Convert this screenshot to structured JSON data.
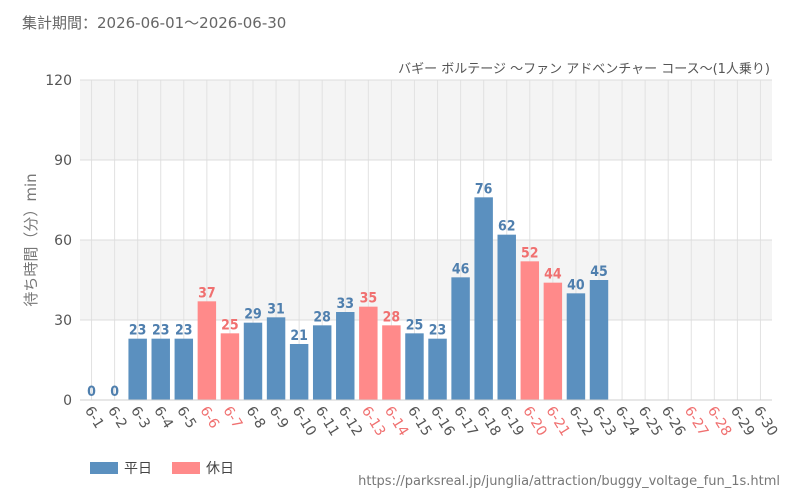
{
  "header": {
    "period_label": "集計期間：2026-06-01～2026-06-30",
    "source_url": "https://parksreal.jp/junglia/attraction/buggy_voltage_fun_1s.html"
  },
  "colors": {
    "weekday": "#5b90bf",
    "holiday": "#ff8a8a",
    "weekday_text": "#4f7fae",
    "holiday_text": "#f07070"
  },
  "chart_data": {
    "type": "bar",
    "title": "バギー ボルテージ ～ファン アドベンチャー コース～(1人乗り)",
    "ylabel": "待ち時間（分）min",
    "xlabel": "",
    "ylim": [
      0,
      120
    ],
    "yticks": [
      0,
      30,
      60,
      90,
      120
    ],
    "grid": true,
    "legend_position": "bottom-left",
    "categories": [
      "6-1",
      "6-2",
      "6-3",
      "6-4",
      "6-5",
      "6-6",
      "6-7",
      "6-8",
      "6-9",
      "6-10",
      "6-11",
      "6-12",
      "6-13",
      "6-14",
      "6-15",
      "6-16",
      "6-17",
      "6-18",
      "6-19",
      "6-20",
      "6-21",
      "6-22",
      "6-23",
      "6-24",
      "6-25",
      "6-26",
      "6-27",
      "6-28",
      "6-29",
      "6-30"
    ],
    "values": [
      0,
      0,
      23,
      23,
      23,
      37,
      25,
      29,
      31,
      21,
      28,
      33,
      35,
      28,
      25,
      23,
      46,
      76,
      62,
      52,
      44,
      40,
      45,
      null,
      null,
      null,
      null,
      null,
      null,
      null
    ],
    "day_type": [
      "平日",
      "平日",
      "平日",
      "平日",
      "平日",
      "休日",
      "休日",
      "平日",
      "平日",
      "平日",
      "平日",
      "平日",
      "休日",
      "休日",
      "平日",
      "平日",
      "平日",
      "平日",
      "平日",
      "休日",
      "休日",
      "平日",
      "平日",
      "平日",
      "平日",
      "平日",
      "休日",
      "休日",
      "平日",
      "平日"
    ],
    "series": [
      {
        "name": "平日",
        "color": "#5b90bf"
      },
      {
        "name": "休日",
        "color": "#ff8a8a"
      }
    ]
  }
}
